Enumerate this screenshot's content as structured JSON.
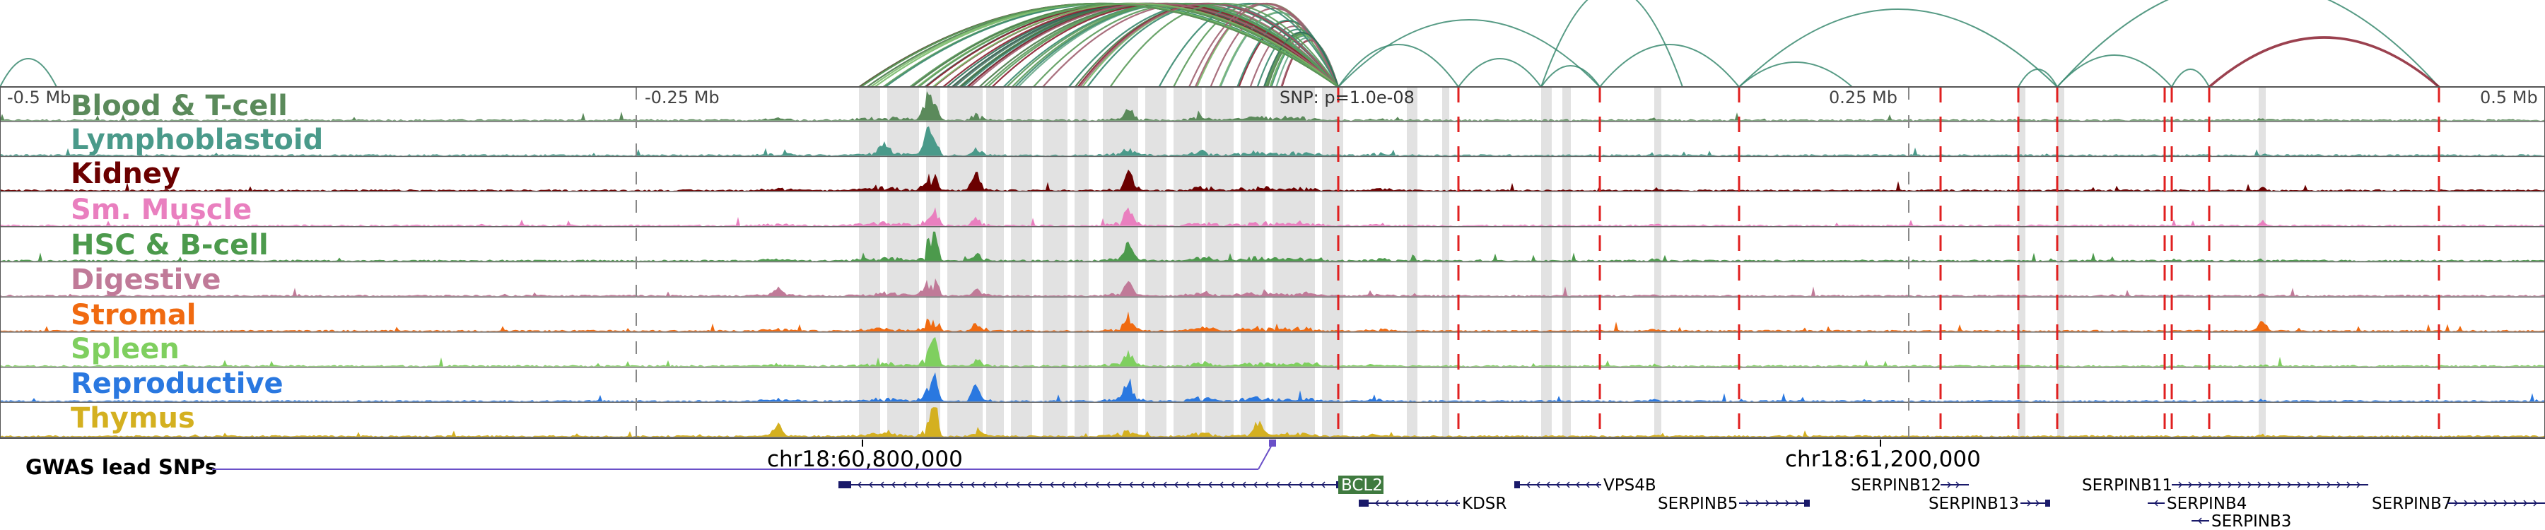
{
  "tracks": [
    {
      "label": "Blood & T-cell",
      "color": "#5b8a5b"
    },
    {
      "label": "Lymphoblastoid",
      "color": "#4a9a8a"
    },
    {
      "label": "Kidney",
      "color": "#6b0000"
    },
    {
      "label": "Sm. Muscle",
      "color": "#e97fbf"
    },
    {
      "label": "HSC & B-cell",
      "color": "#4c9a4c"
    },
    {
      "label": "Digestive",
      "color": "#c07a98"
    },
    {
      "label": "Stromal",
      "color": "#f06a10"
    },
    {
      "label": "Spleen",
      "color": "#7fcf5f"
    },
    {
      "label": "Reproductive",
      "color": "#2a78e0"
    },
    {
      "label": "Thymus",
      "color": "#d4b020"
    }
  ],
  "axis": {
    "left_label": "-0.5 Mb",
    "left_mid_label": "-0.25 Mb",
    "right_mid_label": "0.25 Mb",
    "right_label": "0.5 Mb"
  },
  "snp_label": "SNP: p=1.0e-08",
  "gwas_label": "GWAS lead SNPs",
  "gwas_color": "#6a50c8",
  "coords": [
    "chr18:60,800,000",
    "chr18:61,200,000"
  ],
  "genes": [
    {
      "name": "BCL2",
      "highlight": true
    },
    {
      "name": "KDSR"
    },
    {
      "name": "VPS4B"
    },
    {
      "name": "SERPINB5"
    },
    {
      "name": "SERPINB12"
    },
    {
      "name": "SERPINB13"
    },
    {
      "name": "SERPINB11"
    },
    {
      "name": "SERPINB4"
    },
    {
      "name": "SERPINB3"
    },
    {
      "name": "SERPINB7"
    }
  ],
  "colors": {
    "loop_primary": "#3a8a70",
    "loop_secondary": "#8a2030",
    "snp_marker": "#e02020",
    "highlight_band": "#d8d8d8",
    "gene_highlight": "#3f7a3f",
    "gene_body": "#1a1a6a"
  }
}
